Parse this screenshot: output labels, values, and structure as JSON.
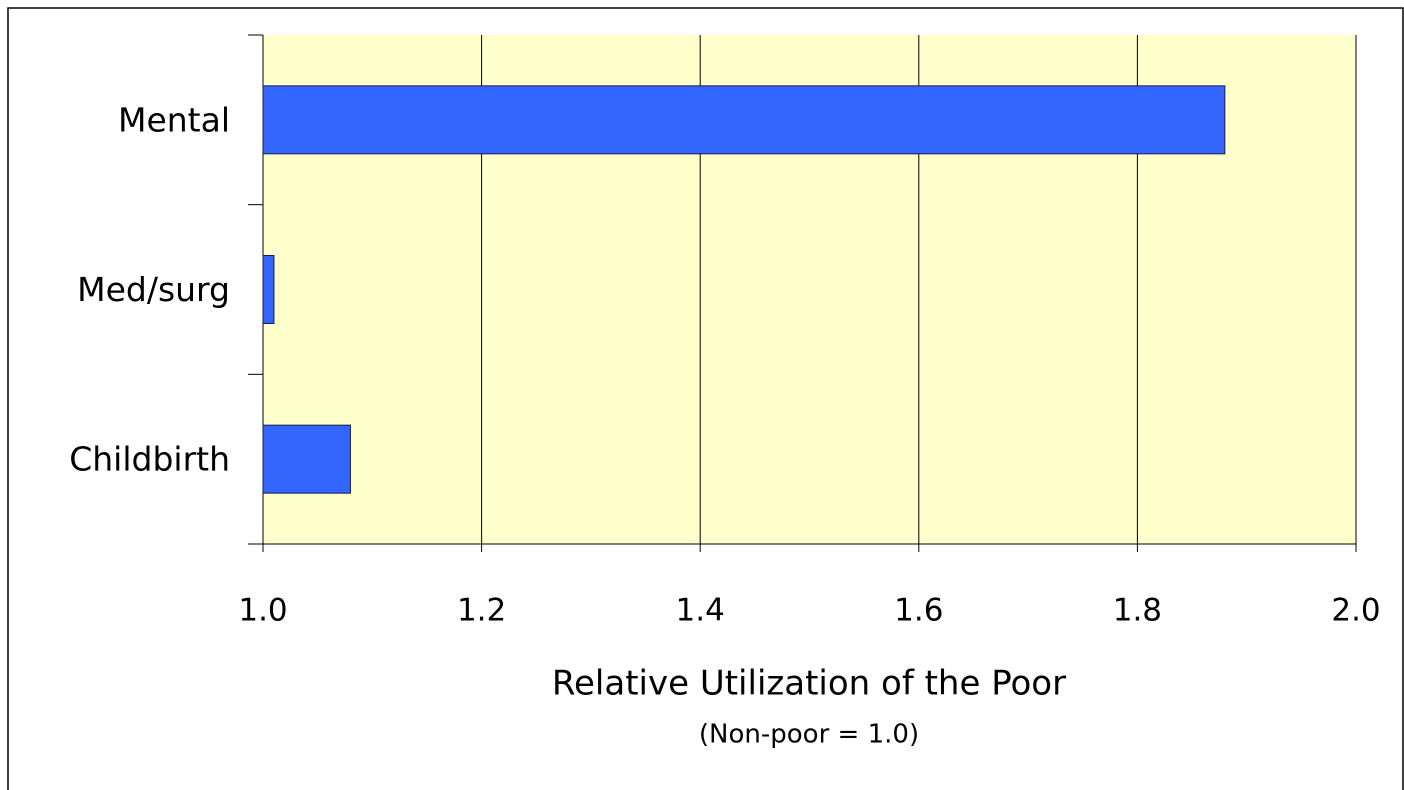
{
  "chart_data": {
    "type": "bar",
    "orientation": "horizontal",
    "categories": [
      "Mental",
      "Med/surg",
      "Childbirth"
    ],
    "values": [
      1.88,
      1.01,
      1.08
    ],
    "color": "#3366ff",
    "xlabel": "Relative Utilization of the Poor",
    "xlabel_note": "(Non-poor = 1.0)",
    "xlim": [
      1,
      2
    ],
    "xticks": [
      {
        "value": 1,
        "label": "1.0"
      },
      1.2,
      1.4,
      1.6,
      1.8,
      {
        "value": 2,
        "label": "2.0"
      }
    ],
    "grid": true,
    "background": "#ffffcc"
  }
}
